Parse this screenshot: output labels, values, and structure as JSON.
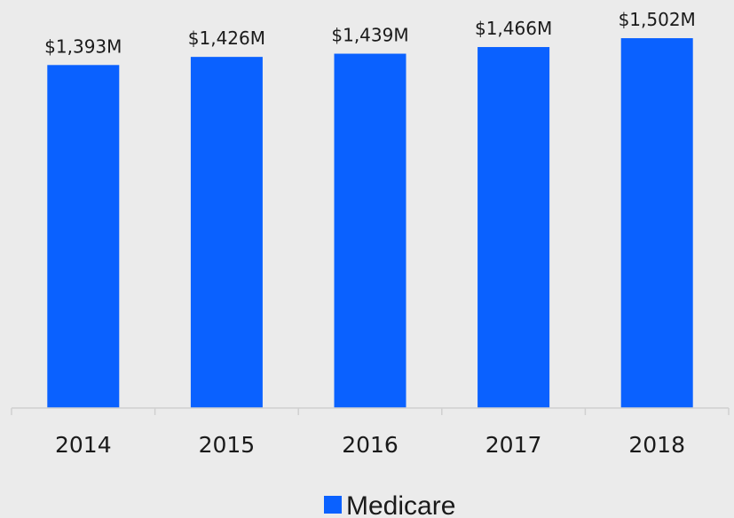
{
  "chart_data": {
    "type": "bar",
    "categories": [
      "2014",
      "2015",
      "2016",
      "2017",
      "2018"
    ],
    "series": [
      {
        "name": "Medicare",
        "values": [
          1393,
          1426,
          1439,
          1466,
          1502
        ],
        "labels": [
          "$1,393M",
          "$1,426M",
          "$1,439M",
          "$1,466M",
          "$1,502M"
        ],
        "color": "#0a61ff"
      }
    ],
    "ylim": [
      0,
      1600
    ],
    "grid": false,
    "legend_position": "bottom",
    "background": "#ebebeb",
    "axis_color": "#d0d0d0"
  }
}
